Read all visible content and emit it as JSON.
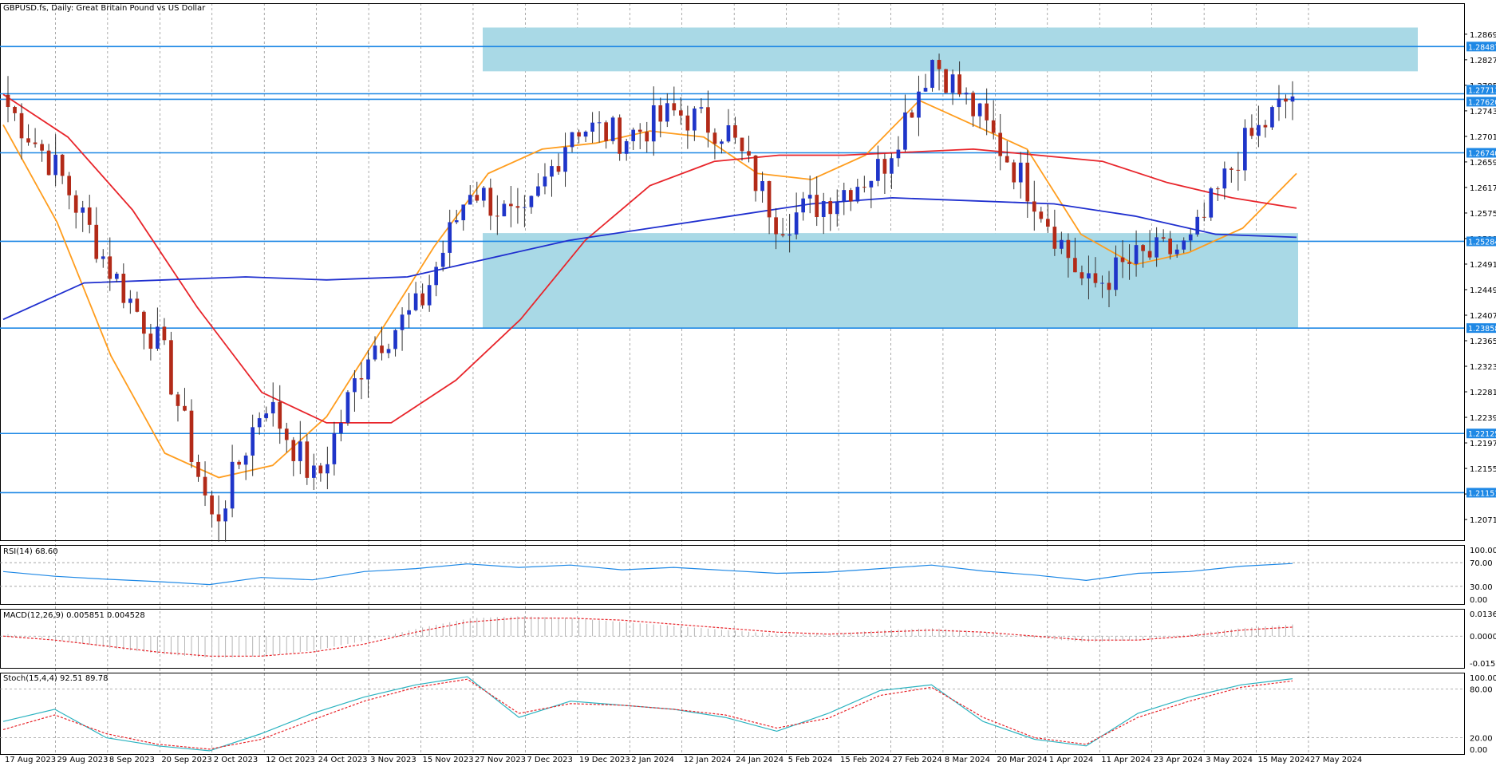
{
  "chart_title": "GBPUSD.fs, Daily:  Great Britain Pound vs US Dollar",
  "colors": {
    "bull": "#1f35c9",
    "bear": "#b22a18",
    "ma_short": "#ff9d1e",
    "ma_mid": "#e8252b",
    "ma_long": "#1f2fcf",
    "level_line": "#1e88e5",
    "zone": "#a9d9e6",
    "rsi": "#1e88e5",
    "macd_signal": "#e8252b",
    "stoch_main": "#2bb3c0",
    "stoch_signal": "#e8252b"
  },
  "price_axis": {
    "ticks": [
      "1.28690",
      "1.28270",
      "1.27850",
      "1.27430",
      "1.27010",
      "1.26590",
      "1.26170",
      "1.25750",
      "1.25330",
      "1.24910",
      "1.24490",
      "1.24070",
      "1.23650",
      "1.23230",
      "1.22810",
      "1.22390",
      "1.21970",
      "1.21550",
      "1.21130",
      "1.20710"
    ],
    "levels": [
      "1.28487",
      "1.27711",
      "1.27620",
      "1.26740",
      "1.25284",
      "1.23858",
      "1.22125",
      "1.21151"
    ],
    "highlight_levels": [
      "1.27711",
      "1.27620"
    ]
  },
  "date_axis": [
    "17 Aug 2023",
    "29 Aug 2023",
    "8 Sep 2023",
    "20 Sep 2023",
    "2 Oct 2023",
    "12 Oct 2023",
    "24 Oct 2023",
    "3 Nov 2023",
    "15 Nov 2023",
    "27 Nov 2023",
    "7 Dec 2023",
    "19 Dec 2023",
    "2 Jan 2024",
    "12 Jan 2024",
    "24 Jan 2024",
    "5 Feb 2024",
    "15 Feb 2024",
    "27 Feb 2024",
    "8 Mar 2024",
    "20 Mar 2024",
    "1 Apr 2024",
    "11 Apr 2024",
    "23 Apr 2024",
    "3 May 2024",
    "15 May 2024",
    "27 May 2024"
  ],
  "rsi_panel": {
    "title": "RSI(14) 68.60",
    "ticks": [
      "100.00",
      "70.00",
      "30.00",
      "0.00"
    ]
  },
  "macd_panel": {
    "title": "MACD(12,26,9) 0.005851 0.004528",
    "ticks": [
      "0.013681",
      "0.000000",
      "-0.015894"
    ]
  },
  "stoch_panel": {
    "title": "Stoch(15,4,4) 92.51 89.78",
    "ticks": [
      "100.00",
      "80.00",
      "20.00",
      "0.00"
    ]
  },
  "chart_data": [
    {
      "type": "candlestick",
      "title": "GBPUSD.fs, Daily:  Great Britain Pound vs US Dollar",
      "x_range": [
        "17 Aug 2023",
        "27 May 2024"
      ],
      "ylim": [
        1.2037,
        1.292
      ],
      "zones": [
        [
          1.2808,
          1.288
        ],
        [
          1.2386,
          1.2542
        ]
      ],
      "horizontal_levels": [
        1.28487,
        1.27711,
        1.2762,
        1.2674,
        1.25284,
        1.23858,
        1.22125,
        1.21151
      ],
      "close_anchors": [
        [
          "17 Aug 2023",
          1.275
        ],
        [
          "29 Aug 2023",
          1.264
        ],
        [
          "8 Sep 2023",
          1.248
        ],
        [
          "20 Sep 2023",
          1.235
        ],
        [
          "2 Oct 2023",
          1.206
        ],
        [
          "12 Oct 2023",
          1.227
        ],
        [
          "24 Oct 2023",
          1.213
        ],
        [
          "3 Nov 2023",
          1.235
        ],
        [
          "15 Nov 2023",
          1.242
        ],
        [
          "27 Nov 2023",
          1.262
        ],
        [
          "7 Dec 2023",
          1.255
        ],
        [
          "19 Dec 2023",
          1.272
        ],
        [
          "2 Jan 2024",
          1.27
        ],
        [
          "12 Jan 2024",
          1.274
        ],
        [
          "24 Jan 2024",
          1.271
        ],
        [
          "5 Feb 2024",
          1.256
        ],
        [
          "15 Feb 2024",
          1.26
        ],
        [
          "27 Feb 2024",
          1.265
        ],
        [
          "8 Mar 2024",
          1.283
        ],
        [
          "20 Mar 2024",
          1.272
        ],
        [
          "1 Apr 2024",
          1.26
        ],
        [
          "11 Apr 2024",
          1.245
        ],
        [
          "23 Apr 2024",
          1.25
        ],
        [
          "3 May 2024",
          1.252
        ],
        [
          "15 May 2024",
          1.268
        ],
        [
          "27 May 2024",
          1.277
        ]
      ],
      "series": [
        {
          "name": "MA short",
          "values": [
            1.272,
            1.256,
            1.234,
            1.218,
            1.214,
            1.216,
            1.224,
            1.238,
            1.252,
            1.264,
            1.268,
            1.269,
            1.271,
            1.27,
            1.264,
            1.263,
            1.267,
            1.276,
            1.272,
            1.268,
            1.254,
            1.249,
            1.251,
            1.255,
            1.264
          ]
        },
        {
          "name": "MA mid",
          "values": [
            1.277,
            1.27,
            1.258,
            1.242,
            1.228,
            1.223,
            1.223,
            1.23,
            1.24,
            1.253,
            1.262,
            1.266,
            1.267,
            1.267,
            1.2675,
            1.268,
            1.267,
            1.266,
            1.2625,
            1.26,
            1.2583
          ]
        },
        {
          "name": "MA long",
          "values": [
            1.24,
            1.246,
            1.2465,
            1.247,
            1.2465,
            1.247,
            1.25,
            1.253,
            1.255,
            1.257,
            1.259,
            1.26,
            1.2595,
            1.259,
            1.257,
            1.254,
            1.2535
          ]
        }
      ]
    },
    {
      "type": "line",
      "title": "RSI(14) 68.60",
      "ylim": [
        0,
        100
      ],
      "reference_levels": [
        70,
        30
      ],
      "series": [
        {
          "name": "RSI(14)",
          "values": [
            55,
            47,
            42,
            38,
            33,
            45,
            41,
            55,
            60,
            68,
            62,
            66,
            58,
            62,
            57,
            52,
            54,
            60,
            66,
            56,
            49,
            40,
            52,
            55,
            64,
            68.6
          ]
        }
      ]
    },
    {
      "type": "bar",
      "title": "MACD(12,26,9) 0.005851 0.004528",
      "ylim": [
        -0.015894,
        0.013681
      ],
      "series": [
        {
          "name": "MACD(12,26,9) histogram",
          "values": [
            0.001,
            -0.002,
            -0.006,
            -0.009,
            -0.011,
            -0.01,
            -0.007,
            -0.002,
            0.004,
            0.009,
            0.01,
            0.009,
            0.007,
            0.005,
            0.003,
            0.001,
            0.001,
            0.003,
            0.004,
            0.002,
            -0.001,
            -0.003,
            -0.002,
            0.001,
            0.004,
            0.005851
          ]
        },
        {
          "name": "MACD(12,26,9) signal",
          "values": [
            0.0,
            -0.002,
            -0.005,
            -0.008,
            -0.01,
            -0.01,
            -0.008,
            -0.004,
            0.002,
            0.007,
            0.009,
            0.009,
            0.008,
            0.006,
            0.004,
            0.002,
            0.001,
            0.002,
            0.003,
            0.002,
            0.0,
            -0.002,
            -0.002,
            0.0,
            0.003,
            0.004528
          ]
        }
      ]
    },
    {
      "type": "line",
      "title": "Stoch(15,4,4) 92.51 89.78",
      "ylim": [
        0,
        100
      ],
      "reference_levels": [
        80,
        20
      ],
      "series": [
        {
          "name": "Stoch main",
          "values": [
            40,
            55,
            20,
            10,
            4,
            25,
            50,
            70,
            85,
            95,
            45,
            65,
            60,
            55,
            45,
            28,
            50,
            78,
            85,
            40,
            18,
            10,
            50,
            70,
            85,
            92.51
          ]
        },
        {
          "name": "Stoch signal",
          "values": [
            30,
            48,
            25,
            12,
            6,
            18,
            42,
            65,
            82,
            92,
            50,
            62,
            60,
            55,
            48,
            32,
            44,
            72,
            82,
            45,
            20,
            12,
            45,
            65,
            82,
            89.78
          ]
        }
      ]
    }
  ]
}
